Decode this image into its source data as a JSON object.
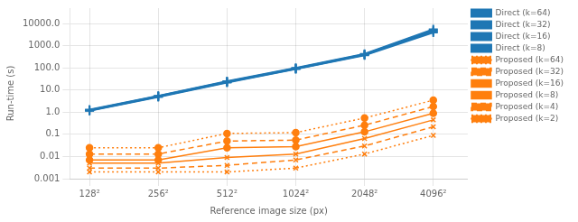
{
  "chart_data": {
    "type": "line",
    "xlabel": "Reference image size (px)",
    "ylabel": "Run-time (s)",
    "log": true,
    "grid": true,
    "legend": "right",
    "x": [
      128,
      256,
      512,
      1024,
      2048,
      4096
    ],
    "xlim": [
      105,
      5800
    ],
    "xticks": [
      {
        "value": 128,
        "label": "128²"
      },
      {
        "value": 256,
        "label": "256²"
      },
      {
        "value": 512,
        "label": "512²"
      },
      {
        "value": 1024,
        "label": "1024²"
      },
      {
        "value": 2048,
        "label": "2048²"
      },
      {
        "value": 4096,
        "label": "4096²"
      }
    ],
    "ylim": [
      0.001,
      50000.0
    ],
    "yticks": [
      0.001,
      0.01,
      0.1,
      {
        "value": 1.0,
        "label": "1.0"
      },
      {
        "value": 10.0,
        "label": "10.0"
      },
      {
        "value": 100.0,
        "label": "100.0"
      },
      {
        "value": 1000.0,
        "label": "1000.0"
      },
      {
        "value": 10000.0,
        "label": "10000.0"
      }
    ],
    "series": [
      {
        "name": "Direct (k=64)",
        "color": "#1f77b4",
        "marker": "plus",
        "line_style": "solid",
        "values": [
          1.3,
          5.5,
          25.0,
          100.0,
          430.0,
          5500.0
        ]
      },
      {
        "name": "Direct (k=32)",
        "color": "#1f77b4",
        "marker": "plus",
        "line_style": "solid",
        "values": [
          1.25,
          5.3,
          24.0,
          96.0,
          410.0,
          5000.0
        ]
      },
      {
        "name": "Direct (k=16)",
        "color": "#1f77b4",
        "marker": "plus",
        "line_style": "solid",
        "values": [
          1.2,
          5.1,
          23.0,
          92.0,
          390.0,
          4500.0
        ]
      },
      {
        "name": "Direct (k=8)",
        "color": "#1f77b4",
        "marker": "plus",
        "line_style": "solid",
        "values": [
          1.15,
          4.9,
          22.0,
          88.0,
          370.0,
          4000.0
        ]
      },
      {
        "name": "Proposed (k=64)",
        "color": "#ff7f0e",
        "marker": "circle",
        "line_style": "dotted",
        "values": [
          0.025,
          0.025,
          0.11,
          0.12,
          0.55,
          3.5
        ]
      },
      {
        "name": "Proposed (k=32)",
        "color": "#ff7f0e",
        "marker": "circle",
        "line_style": "dashed",
        "values": [
          0.013,
          0.013,
          0.05,
          0.055,
          0.26,
          1.8
        ]
      },
      {
        "name": "Proposed (k=16)",
        "color": "#ff7f0e",
        "marker": "circle",
        "line_style": "solid",
        "values": [
          0.007,
          0.007,
          0.025,
          0.028,
          0.13,
          0.9
        ]
      },
      {
        "name": "Proposed (k=8)",
        "color": "#ff7f0e",
        "marker": "x",
        "line_style": "solid",
        "values": [
          0.005,
          0.005,
          0.009,
          0.013,
          0.065,
          0.45
        ]
      },
      {
        "name": "Proposed (k=4)",
        "color": "#ff7f0e",
        "marker": "x",
        "line_style": "dashed",
        "values": [
          0.003,
          0.003,
          0.004,
          0.007,
          0.03,
          0.22
        ]
      },
      {
        "name": "Proposed (k=2)",
        "color": "#ff7f0e",
        "marker": "x",
        "line_style": "dotted",
        "values": [
          0.002,
          0.002,
          0.002,
          0.003,
          0.013,
          0.09
        ]
      }
    ]
  }
}
